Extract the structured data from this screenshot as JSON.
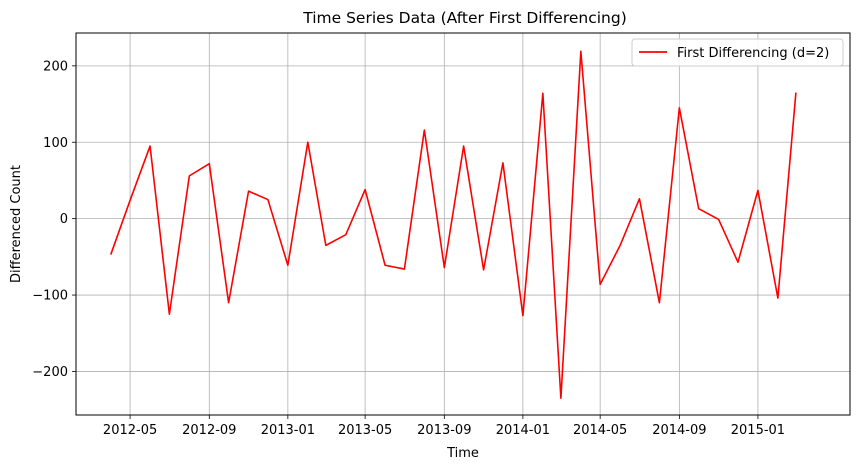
{
  "chart_data": {
    "type": "line",
    "title": "Time Series Data (After First Differencing)",
    "xlabel": "Time",
    "ylabel": "Differenced Count",
    "xlim": [
      "2012-02-07",
      "2015-05-24"
    ],
    "ylim": [
      -257,
      243
    ],
    "grid": true,
    "legend_position": "top-right",
    "x_ticks": [
      "2012-05",
      "2012-09",
      "2013-01",
      "2013-05",
      "2013-09",
      "2014-01",
      "2014-05",
      "2014-09",
      "2015-01"
    ],
    "y_ticks": [
      -200,
      -100,
      0,
      100,
      200
    ],
    "y_tick_labels": [
      "−200",
      "−100",
      "0",
      "100",
      "200"
    ],
    "series": [
      {
        "name": "First Differencing (d=2)",
        "color": "#ff0000",
        "x": [
          "2012-04-01",
          "2012-05-01",
          "2012-06-01",
          "2012-07-01",
          "2012-08-01",
          "2012-09-01",
          "2012-10-01",
          "2012-11-01",
          "2012-12-01",
          "2013-01-01",
          "2013-02-01",
          "2013-03-01",
          "2013-04-01",
          "2013-05-01",
          "2013-06-01",
          "2013-07-01",
          "2013-08-01",
          "2013-09-01",
          "2013-10-01",
          "2013-11-01",
          "2013-12-01",
          "2014-01-01",
          "2014-02-01",
          "2014-03-01",
          "2014-04-01",
          "2014-05-01",
          "2014-06-01",
          "2014-07-01",
          "2014-08-01",
          "2014-09-01",
          "2014-10-01",
          "2014-11-01",
          "2014-12-01",
          "2015-01-01",
          "2015-02-01",
          "2015-03-01"
        ],
        "values": [
          -47,
          24,
          95,
          -125,
          56,
          72,
          -110,
          36,
          25,
          -61,
          100,
          -35,
          -21,
          38,
          -61,
          -66,
          116,
          -64,
          95,
          -67,
          73,
          -127,
          164,
          -235,
          219,
          -86,
          -35,
          26,
          -110,
          145,
          13,
          -1,
          -57,
          37,
          -104,
          165
        ]
      }
    ]
  }
}
